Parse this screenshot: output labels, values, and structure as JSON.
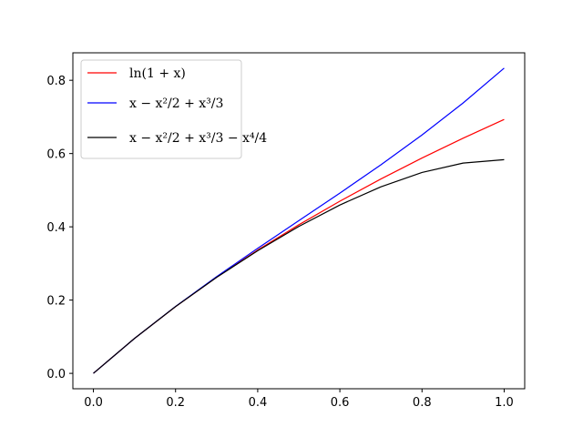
{
  "chart_data": {
    "type": "line",
    "title": "",
    "xlabel": "",
    "ylabel": "",
    "xlim": [
      -0.05,
      1.05
    ],
    "ylim": [
      -0.042,
      0.875
    ],
    "grid": false,
    "legend_position": "top-left",
    "x_ticks": [
      {
        "value": 0.0,
        "label": "0.0"
      },
      {
        "value": 0.2,
        "label": "0.2"
      },
      {
        "value": 0.4,
        "label": "0.4"
      },
      {
        "value": 0.6,
        "label": "0.6"
      },
      {
        "value": 0.8,
        "label": "0.8"
      },
      {
        "value": 1.0,
        "label": "1.0"
      }
    ],
    "y_ticks": [
      {
        "value": 0.0,
        "label": "0.0"
      },
      {
        "value": 0.2,
        "label": "0.2"
      },
      {
        "value": 0.4,
        "label": "0.4"
      },
      {
        "value": 0.6,
        "label": "0.6"
      },
      {
        "value": 0.8,
        "label": "0.8"
      }
    ],
    "x": [
      0.0,
      0.1,
      0.2,
      0.3,
      0.4,
      0.5,
      0.6,
      0.7,
      0.8,
      0.9,
      1.0
    ],
    "series": [
      {
        "name": "ln(1 + x)",
        "color": "#ff0000",
        "values": [
          0.0,
          0.0953,
          0.1823,
          0.2624,
          0.3365,
          0.4055,
          0.47,
          0.5306,
          0.5878,
          0.6419,
          0.6931
        ]
      },
      {
        "name": "x − x²/2 + x³/3",
        "color": "#0000ff",
        "values": [
          0.0,
          0.0953,
          0.1827,
          0.264,
          0.3413,
          0.4167,
          0.492,
          0.5693,
          0.6507,
          0.738,
          0.8333
        ]
      },
      {
        "name": "x − x²/2 + x³/3 − x⁴/4",
        "color": "#000000",
        "values": [
          0.0,
          0.0953,
          0.1823,
          0.262,
          0.3349,
          0.401,
          0.4596,
          0.5093,
          0.5483,
          0.574,
          0.5833
        ]
      }
    ]
  }
}
